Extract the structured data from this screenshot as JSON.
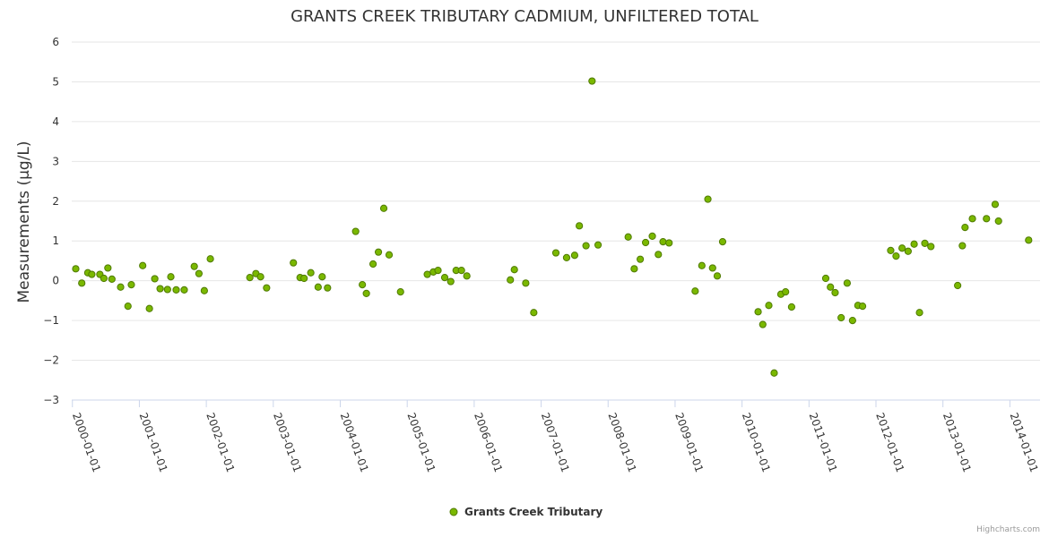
{
  "colors": {
    "marker_fill": "#7ab800",
    "marker_stroke": "#4f7a00",
    "grid": "#e6e6e6",
    "axis": "#ccd6eb",
    "text": "#333333",
    "credits": "#999999"
  },
  "credits": "Highcharts.com",
  "chart_data": {
    "type": "scatter",
    "title": "GRANTS CREEK TRIBUTARY CADMIUM, UNFILTERED TOTAL",
    "xlabel": "",
    "ylabel": "Measurements (µg/L)",
    "ylim": [
      -3,
      6
    ],
    "yticks": [
      -3,
      -2,
      -1,
      0,
      1,
      2,
      3,
      4,
      5,
      6
    ],
    "xlim": [
      1999.99,
      2014.45
    ],
    "xticks": [
      2000,
      2001,
      2002,
      2003,
      2004,
      2005,
      2006,
      2007,
      2008,
      2009,
      2010,
      2011,
      2012,
      2013,
      2014
    ],
    "xtick_labels": [
      "2000-01-01",
      "2001-01-01",
      "2002-01-01",
      "2003-01-01",
      "2004-01-01",
      "2005-01-01",
      "2006-01-01",
      "2007-01-01",
      "2008-01-01",
      "2009-01-01",
      "2010-01-01",
      "2011-01-01",
      "2012-01-01",
      "2013-01-01",
      "2014-01-01"
    ],
    "grid": true,
    "legend": {
      "position": "bottom-center",
      "entries": [
        "Grants Creek Tributary"
      ]
    },
    "series": [
      {
        "name": "Grants Creek Tributary",
        "points": [
          [
            2000.05,
            0.3
          ],
          [
            2000.14,
            -0.06
          ],
          [
            2000.23,
            0.2
          ],
          [
            2000.29,
            0.16
          ],
          [
            2000.41,
            0.16
          ],
          [
            2000.47,
            0.06
          ],
          [
            2000.53,
            0.32
          ],
          [
            2000.59,
            0.04
          ],
          [
            2000.72,
            -0.16
          ],
          [
            2000.83,
            -0.64
          ],
          [
            2000.88,
            -0.1
          ],
          [
            2001.05,
            0.38
          ],
          [
            2001.15,
            -0.7
          ],
          [
            2001.23,
            0.05
          ],
          [
            2001.31,
            -0.2
          ],
          [
            2001.42,
            -0.22
          ],
          [
            2001.47,
            0.1
          ],
          [
            2001.55,
            -0.23
          ],
          [
            2001.67,
            -0.23
          ],
          [
            2001.82,
            0.36
          ],
          [
            2001.89,
            0.18
          ],
          [
            2001.97,
            -0.25
          ],
          [
            2002.06,
            0.55
          ],
          [
            2002.65,
            0.08
          ],
          [
            2002.74,
            0.18
          ],
          [
            2002.81,
            0.1
          ],
          [
            2002.9,
            -0.18
          ],
          [
            2003.3,
            0.45
          ],
          [
            2003.4,
            0.08
          ],
          [
            2003.46,
            0.06
          ],
          [
            2003.56,
            0.2
          ],
          [
            2003.67,
            -0.16
          ],
          [
            2003.73,
            0.1
          ],
          [
            2003.81,
            -0.18
          ],
          [
            2004.23,
            1.24
          ],
          [
            2004.33,
            -0.1
          ],
          [
            2004.39,
            -0.32
          ],
          [
            2004.49,
            0.42
          ],
          [
            2004.57,
            0.72
          ],
          [
            2004.65,
            1.82
          ],
          [
            2004.73,
            0.65
          ],
          [
            2004.9,
            -0.28
          ],
          [
            2005.3,
            0.16
          ],
          [
            2005.39,
            0.22
          ],
          [
            2005.46,
            0.26
          ],
          [
            2005.56,
            0.08
          ],
          [
            2005.65,
            -0.02
          ],
          [
            2005.73,
            0.26
          ],
          [
            2005.81,
            0.26
          ],
          [
            2005.89,
            0.12
          ],
          [
            2006.54,
            0.02
          ],
          [
            2006.6,
            0.28
          ],
          [
            2006.77,
            -0.06
          ],
          [
            2006.89,
            -0.8
          ],
          [
            2007.22,
            0.7
          ],
          [
            2007.38,
            0.58
          ],
          [
            2007.5,
            0.64
          ],
          [
            2007.57,
            1.38
          ],
          [
            2007.67,
            0.88
          ],
          [
            2007.76,
            5.02
          ],
          [
            2007.85,
            0.9
          ],
          [
            2008.3,
            1.1
          ],
          [
            2008.39,
            0.3
          ],
          [
            2008.48,
            0.54
          ],
          [
            2008.56,
            0.96
          ],
          [
            2008.66,
            1.12
          ],
          [
            2008.75,
            0.66
          ],
          [
            2008.82,
            0.98
          ],
          [
            2008.91,
            0.95
          ],
          [
            2009.3,
            -0.26
          ],
          [
            2009.4,
            0.38
          ],
          [
            2009.49,
            2.05
          ],
          [
            2009.56,
            0.32
          ],
          [
            2009.63,
            0.12
          ],
          [
            2009.71,
            0.98
          ],
          [
            2010.24,
            -0.78
          ],
          [
            2010.31,
            -1.1
          ],
          [
            2010.4,
            -0.62
          ],
          [
            2010.48,
            -2.32
          ],
          [
            2010.58,
            -0.34
          ],
          [
            2010.65,
            -0.28
          ],
          [
            2010.74,
            -0.66
          ],
          [
            2011.25,
            0.06
          ],
          [
            2011.32,
            -0.16
          ],
          [
            2011.39,
            -0.3
          ],
          [
            2011.48,
            -0.93
          ],
          [
            2011.57,
            -0.06
          ],
          [
            2011.65,
            -1.0
          ],
          [
            2011.73,
            -0.62
          ],
          [
            2011.8,
            -0.64
          ],
          [
            2012.22,
            0.76
          ],
          [
            2012.3,
            0.62
          ],
          [
            2012.39,
            0.82
          ],
          [
            2012.48,
            0.74
          ],
          [
            2012.57,
            0.92
          ],
          [
            2012.65,
            -0.8
          ],
          [
            2012.73,
            0.94
          ],
          [
            2012.82,
            0.86
          ],
          [
            2013.22,
            -0.12
          ],
          [
            2013.29,
            0.88
          ],
          [
            2013.33,
            1.34
          ],
          [
            2013.44,
            1.56
          ],
          [
            2013.65,
            1.56
          ],
          [
            2013.78,
            1.92
          ],
          [
            2013.83,
            1.5
          ],
          [
            2014.28,
            1.02
          ]
        ]
      }
    ]
  }
}
